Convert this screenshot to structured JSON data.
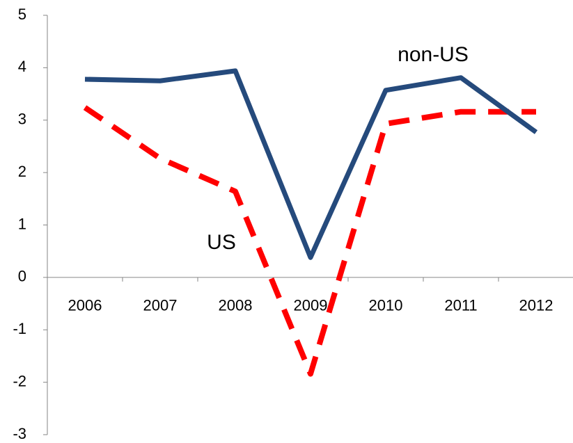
{
  "chart_data": {
    "type": "line",
    "categories": [
      "2006",
      "2007",
      "2008",
      "2009",
      "2010",
      "2011",
      "2012"
    ],
    "series": [
      {
        "name": "non-US",
        "color": "#254a7c",
        "dash": false,
        "values": [
          3.78,
          3.75,
          3.94,
          0.38,
          3.57,
          3.81,
          2.77
        ]
      },
      {
        "name": "US",
        "color": "#ff0000",
        "dash": true,
        "values": [
          3.24,
          2.27,
          1.64,
          -1.84,
          2.93,
          3.16,
          3.16
        ]
      }
    ],
    "ylim": [
      -3,
      5
    ],
    "yticks": [
      -3,
      -2,
      -1,
      0,
      1,
      2,
      3,
      4,
      5
    ],
    "annotations": [
      "non-US",
      "US"
    ]
  }
}
